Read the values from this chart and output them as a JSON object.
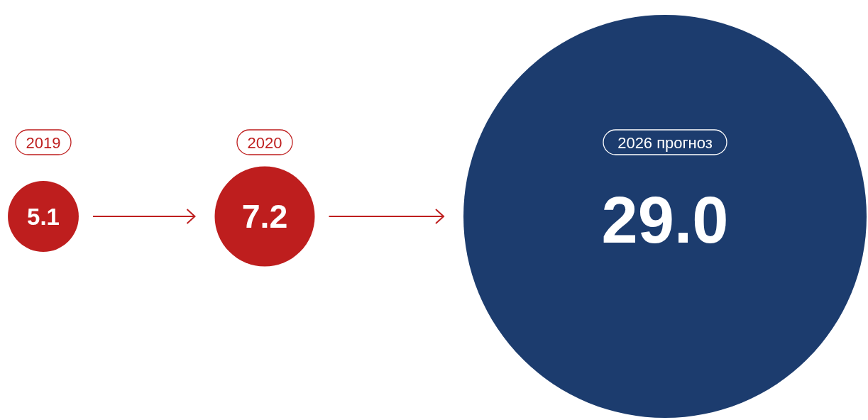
{
  "chart_data": {
    "type": "other",
    "categories": [
      "2019",
      "2020",
      "2026 прогноз"
    ],
    "values": [
      5.1,
      7.2,
      29.0
    ],
    "colors": [
      "#be1e1e",
      "#be1e1e",
      "#1c3c6e"
    ],
    "value_labels": [
      "5.1",
      "7.2",
      "29.0"
    ]
  }
}
